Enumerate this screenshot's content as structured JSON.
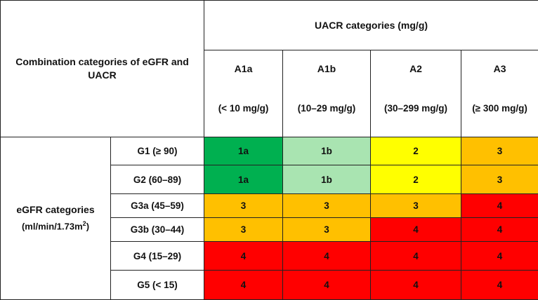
{
  "header": {
    "combination_label": "Combination categories of eGFR and UACR",
    "uacr_title": "UACR categories (mg/g)"
  },
  "columns": [
    {
      "code": "A1a",
      "range": "(< 10 mg/g)"
    },
    {
      "code": "A1b",
      "range": "(10–29 mg/g)"
    },
    {
      "code": "A2",
      "range": "(30–299 mg/g)"
    },
    {
      "code": "A3",
      "range": "(≥ 300 mg/g)"
    }
  ],
  "egfr": {
    "label": "eGFR categories",
    "unit_prefix": "(ml/min/1.73m",
    "unit_sup": "2",
    "unit_suffix": ")"
  },
  "rows": [
    {
      "label": "G1 (≥ 90)",
      "cells": [
        "1a",
        "1b",
        "2",
        "3"
      ]
    },
    {
      "label": "G2 (60–89)",
      "cells": [
        "1a",
        "1b",
        "2",
        "3"
      ]
    },
    {
      "label": "G3a (45–59)",
      "cells": [
        "3",
        "3",
        "3",
        "4"
      ]
    },
    {
      "label": "G3b (30–44)",
      "cells": [
        "3",
        "3",
        "4",
        "4"
      ]
    },
    {
      "label": "G4 (15–29)",
      "cells": [
        "4",
        "4",
        "4",
        "4"
      ]
    },
    {
      "label": "G5 (< 15)",
      "cells": [
        "4",
        "4",
        "4",
        "4"
      ]
    }
  ],
  "category_colors": {
    "1a": "#00b050",
    "1b": "#a9e4b1",
    "2": "#ffff00",
    "3": "#ffc000",
    "4": "#ff0000"
  }
}
